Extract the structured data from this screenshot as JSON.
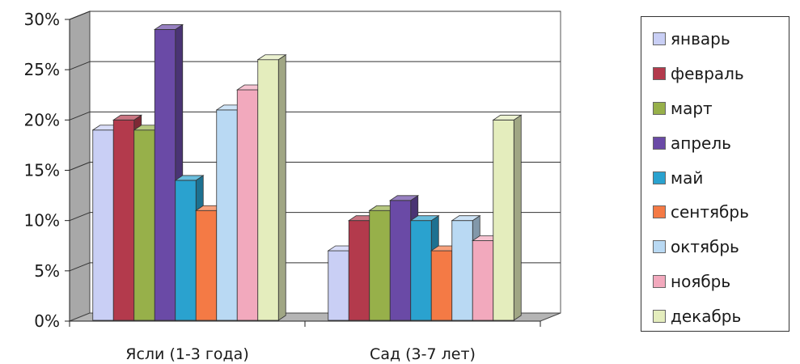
{
  "chart_data": {
    "type": "bar",
    "variant": "3d-clustered-column",
    "categories": [
      "Ясли (1-3 года)",
      "Сад (3-7 лет)"
    ],
    "series": [
      {
        "name": "январь",
        "color": "#c9cff5",
        "values": [
          19,
          7
        ]
      },
      {
        "name": "февраль",
        "color": "#b33a4c",
        "values": [
          20,
          10
        ]
      },
      {
        "name": "март",
        "color": "#97b04a",
        "values": [
          19,
          11
        ]
      },
      {
        "name": "апрель",
        "color": "#6a4aa6",
        "values": [
          29,
          12
        ]
      },
      {
        "name": "май",
        "color": "#2aa2cf",
        "values": [
          14,
          10
        ]
      },
      {
        "name": "сентябрь",
        "color": "#f47a45",
        "values": [
          11,
          7
        ]
      },
      {
        "name": "октябрь",
        "color": "#b9d9f3",
        "values": [
          21,
          10
        ]
      },
      {
        "name": "ноябрь",
        "color": "#f2a9bd",
        "values": [
          23,
          8
        ]
      },
      {
        "name": "декабрь",
        "color": "#e4edbd",
        "values": [
          26,
          20
        ]
      }
    ],
    "y_ticks": [
      "0%",
      "5%",
      "10%",
      "15%",
      "20%",
      "25%",
      "30%"
    ],
    "ylim": [
      0,
      30
    ],
    "y_unit": "%",
    "grid": true,
    "legend_position": "right"
  }
}
